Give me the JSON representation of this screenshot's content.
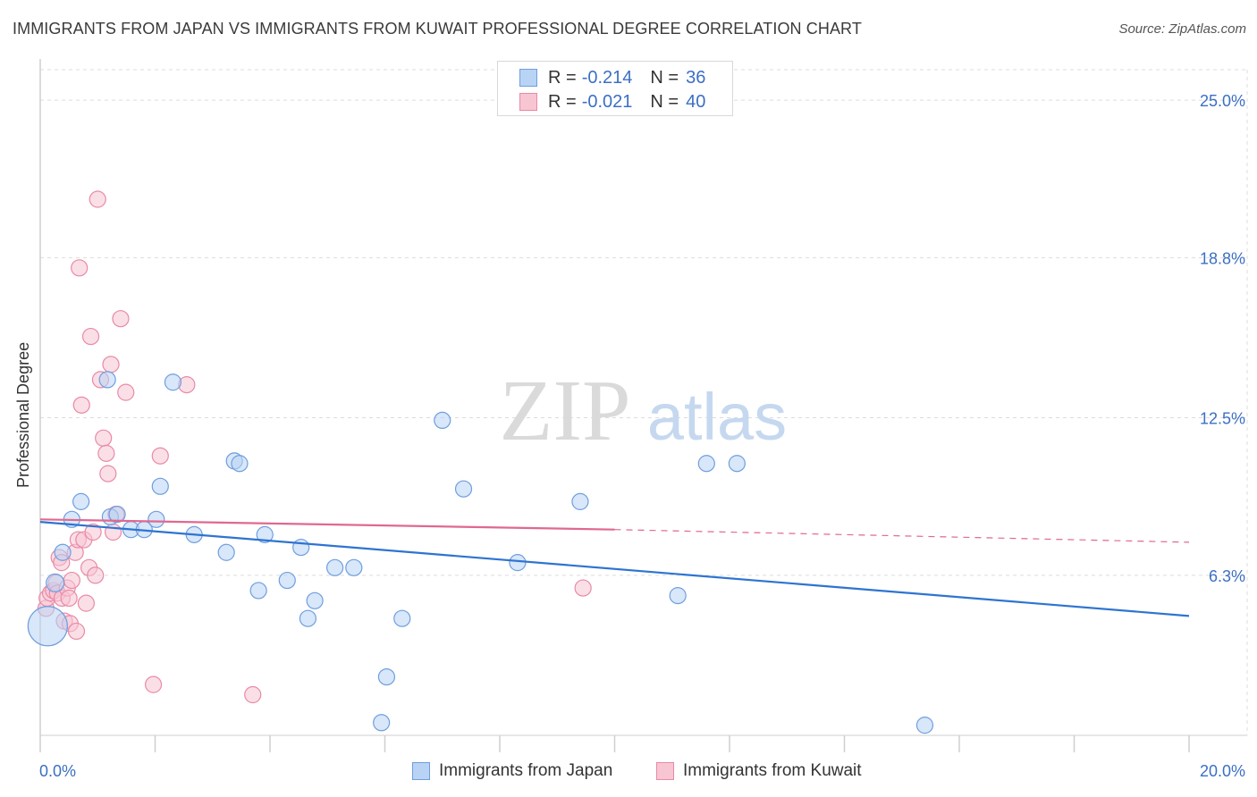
{
  "title": "IMMIGRANTS FROM JAPAN VS IMMIGRANTS FROM KUWAIT PROFESSIONAL DEGREE CORRELATION CHART",
  "source": "Source: ZipAtlas.com",
  "watermark": {
    "zip": "ZIP",
    "atlas": "atlas"
  },
  "legend": {
    "japan": {
      "r_label": "R = ",
      "r_value": "-0.214",
      "n_label": "N = ",
      "n_value": "36"
    },
    "kuwait": {
      "r_label": "R = ",
      "r_value": "-0.021",
      "n_label": "N = ",
      "n_value": "40"
    }
  },
  "colors": {
    "japan_fill": "#b8d3f4",
    "japan_stroke": "#6f9ede",
    "japan_line": "#2e74d0",
    "kuwait_fill": "#f8c5d3",
    "kuwait_stroke": "#e88aa6",
    "kuwait_line": "#e06890",
    "axis_text": "#3b6fc4",
    "grid": "#dcdcdc"
  },
  "chart_data": {
    "type": "scatter",
    "title": "IMMIGRANTS FROM JAPAN VS IMMIGRANTS FROM KUWAIT PROFESSIONAL DEGREE CORRELATION CHART",
    "xlabel": "",
    "ylabel": "Professional Degree",
    "xlim": [
      0,
      20
    ],
    "ylim": [
      0,
      26.2
    ],
    "x_tick_labels": [
      "0.0%",
      "20.0%"
    ],
    "y_ticks": [
      6.3,
      12.5,
      18.8,
      25.0
    ],
    "y_tick_labels": [
      "6.3%",
      "12.5%",
      "18.8%",
      "25.0%"
    ],
    "grid": true,
    "legend_position": "top-center",
    "series": [
      {
        "name": "Immigrants from Japan",
        "x": [
          0.13,
          0.26,
          0.39,
          0.55,
          0.71,
          1.17,
          1.22,
          1.34,
          1.58,
          1.81,
          2.31,
          2.02,
          2.09,
          2.68,
          3.38,
          3.24,
          3.47,
          3.8,
          3.91,
          4.3,
          4.54,
          4.66,
          4.78,
          5.13,
          5.46,
          5.94,
          6.03,
          6.3,
          7.0,
          7.37,
          8.31,
          9.4,
          11.1,
          11.6,
          12.13,
          15.4
        ],
        "y": [
          4.3,
          6.0,
          7.2,
          8.5,
          9.2,
          14.0,
          8.6,
          8.7,
          8.1,
          8.1,
          13.9,
          8.5,
          9.8,
          7.9,
          10.8,
          7.2,
          10.7,
          5.7,
          7.9,
          6.1,
          7.4,
          4.6,
          5.3,
          6.6,
          6.6,
          0.5,
          2.3,
          4.6,
          12.4,
          9.7,
          6.8,
          9.2,
          5.5,
          10.7,
          10.7,
          0.4
        ],
        "sizes": [
          22,
          10,
          9,
          9,
          9,
          9,
          9,
          9,
          9,
          9,
          9,
          9,
          9,
          9,
          9,
          9,
          9,
          9,
          9,
          9,
          9,
          9,
          9,
          9,
          9,
          9,
          9,
          9,
          9,
          9,
          9,
          9,
          9,
          9,
          9,
          9
        ]
      },
      {
        "name": "Immigrants from Kuwait",
        "x": [
          0.1,
          0.12,
          0.18,
          0.23,
          0.28,
          0.3,
          0.33,
          0.37,
          0.38,
          0.42,
          0.47,
          0.5,
          0.52,
          0.55,
          0.61,
          0.63,
          0.66,
          0.68,
          0.72,
          0.76,
          0.8,
          0.85,
          0.88,
          0.92,
          0.96,
          1.0,
          1.05,
          1.1,
          1.15,
          1.18,
          1.23,
          1.27,
          1.32,
          1.4,
          1.49,
          1.97,
          2.09,
          2.55,
          3.7,
          9.45
        ],
        "y": [
          5.0,
          5.4,
          5.6,
          5.7,
          6.0,
          5.6,
          7.0,
          6.8,
          5.4,
          4.5,
          5.8,
          5.4,
          4.4,
          6.1,
          7.2,
          4.1,
          7.7,
          18.4,
          13.0,
          7.7,
          5.2,
          6.6,
          15.7,
          8.0,
          6.3,
          21.1,
          14.0,
          11.7,
          11.1,
          10.3,
          14.6,
          8.0,
          8.7,
          16.4,
          13.5,
          2.0,
          11.0,
          13.8,
          1.6,
          5.8
        ],
        "sizes": [
          9,
          9,
          9,
          9,
          9,
          9,
          9,
          9,
          9,
          9,
          9,
          9,
          9,
          9,
          9,
          9,
          9,
          9,
          9,
          9,
          9,
          9,
          9,
          9,
          9,
          9,
          9,
          9,
          9,
          9,
          9,
          9,
          9,
          9,
          9,
          9,
          9,
          9,
          9,
          9
        ]
      }
    ],
    "trend_lines": [
      {
        "series": "Immigrants from Japan",
        "x": [
          0,
          20
        ],
        "y": [
          8.4,
          4.7
        ],
        "style": "solid"
      },
      {
        "series": "Immigrants from Kuwait",
        "x": [
          0,
          10
        ],
        "y": [
          8.5,
          8.1
        ],
        "style": "solid"
      },
      {
        "series": "Immigrants from Kuwait",
        "x": [
          10,
          20
        ],
        "y": [
          8.1,
          7.6
        ],
        "style": "dashed"
      }
    ]
  }
}
